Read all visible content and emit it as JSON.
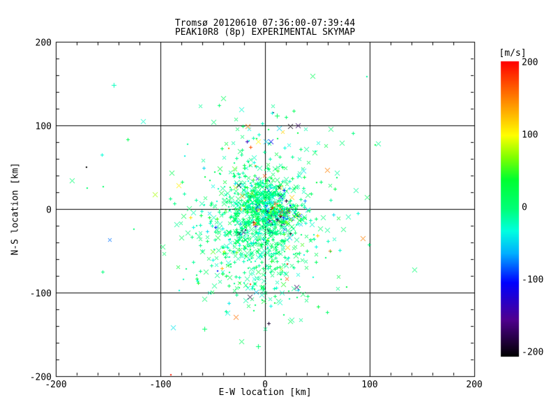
{
  "window": {
    "background": "#FFFFFF",
    "foreground": "#000000"
  },
  "chart_data": {
    "type": "scatter",
    "title": "Tromsø 20120610 07:36:00-07:39:44",
    "subtitle": "PEAK10R8 (8p) EXPERIMENTAL SKYMAP",
    "xlabel": "E-W location [km]",
    "ylabel": "N-S location [km]",
    "xlim": [
      -200,
      200
    ],
    "ylim": [
      -200,
      200
    ],
    "x_ticks": [
      -200,
      -100,
      0,
      100,
      200
    ],
    "y_ticks": [
      200,
      100,
      0,
      -100,
      -200
    ],
    "grid_lines_km": [
      -100,
      0,
      100
    ],
    "minor_tick_interval_km": 20,
    "grid": "on",
    "axis_color": "#000000",
    "background": "#FFFFFF",
    "colorbar": {
      "label": "[m/s]",
      "min": -200,
      "max": 200,
      "ticks": [
        200,
        100,
        0,
        -100,
        -200
      ],
      "position": "right",
      "stops": [
        [
          -200,
          "#000000"
        ],
        [
          -150,
          "#500090"
        ],
        [
          -100,
          "#0000FF"
        ],
        [
          -60,
          "#00B0FF"
        ],
        [
          -30,
          "#00FFE0"
        ],
        [
          0,
          "#00FF78"
        ],
        [
          40,
          "#00FF30"
        ],
        [
          70,
          "#80FF00"
        ],
        [
          100,
          "#FFFF00"
        ],
        [
          150,
          "#FF8000"
        ],
        [
          200,
          "#FF0000"
        ]
      ]
    },
    "marker_types": [
      "x",
      "plus",
      "dot"
    ],
    "marker_weights": [
      0.5,
      0.35,
      0.15
    ],
    "seed": 20120610,
    "clusters": [
      {
        "name": "dense-core",
        "n": 420,
        "cx": -3,
        "cy": 2,
        "sx": 15,
        "sy": 20,
        "v_sigma": 20,
        "wild_frac": 0.13
      },
      {
        "name": "dark-subcore",
        "n": 90,
        "cx": 15,
        "cy": -8,
        "sx": 9,
        "sy": 8,
        "v_sigma": 60,
        "wild_frac": 0.45
      },
      {
        "name": "south-body",
        "n": 620,
        "cx": -8,
        "cy": -28,
        "sx": 27,
        "sy": 40,
        "v_sigma": 18,
        "wild_frac": 0.07
      },
      {
        "name": "halo",
        "n": 160,
        "cx": -5,
        "cy": -5,
        "sx": 52,
        "sy": 62,
        "v_sigma": 22,
        "wild_frac": 0.12
      },
      {
        "name": "north-sparse",
        "n": 35,
        "cx": 0,
        "cy": 75,
        "sx": 40,
        "sy": 28,
        "v_sigma": 25,
        "wild_frac": 0.2
      }
    ],
    "outliers": [
      {
        "x": -185,
        "y": 34,
        "v": 5,
        "m": "x"
      },
      {
        "x": -171,
        "y": 50,
        "v": -200,
        "m": "dot"
      },
      {
        "x": -155,
        "y": 27,
        "v": 10,
        "m": "dot"
      },
      {
        "x": -170,
        "y": 25,
        "v": 8,
        "m": "dot"
      },
      {
        "x": -145,
        "y": 148,
        "v": -20,
        "m": "plus"
      },
      {
        "x": -83,
        "y": 28,
        "v": 105,
        "m": "x"
      },
      {
        "x": -98,
        "y": -45,
        "v": 12,
        "m": "x"
      },
      {
        "x": 45,
        "y": 159,
        "v": 18,
        "m": "x"
      },
      {
        "x": 97,
        "y": 158,
        "v": -12,
        "m": "dot"
      },
      {
        "x": 24,
        "y": 99,
        "v": -195,
        "m": "x"
      },
      {
        "x": 13,
        "y": 97,
        "v": -45,
        "m": "x"
      },
      {
        "x": -17,
        "y": 99,
        "v": 150,
        "m": "x"
      },
      {
        "x": -23,
        "y": 119,
        "v": -25,
        "m": "x"
      },
      {
        "x": 11,
        "y": 112,
        "v": 15,
        "m": "plus"
      },
      {
        "x": -7,
        "y": 81,
        "v": 100,
        "m": "x"
      },
      {
        "x": 5,
        "y": 81,
        "v": -100,
        "m": "x"
      },
      {
        "x": -88,
        "y": -142,
        "v": -40,
        "m": "x"
      },
      {
        "x": -58,
        "y": -143,
        "v": 10,
        "m": "plus"
      },
      {
        "x": -28,
        "y": -129,
        "v": 155,
        "m": "x"
      },
      {
        "x": 24,
        "y": -134,
        "v": 20,
        "m": "x"
      },
      {
        "x": -36,
        "y": -124,
        "v": -30,
        "m": "x"
      },
      {
        "x": -90,
        "y": -198,
        "v": 190,
        "m": "dot"
      },
      {
        "x": -23,
        "y": -158,
        "v": 15,
        "m": "x"
      },
      {
        "x": -7,
        "y": -164,
        "v": 5,
        "m": "plus"
      },
      {
        "x": 93,
        "y": -35,
        "v": 150,
        "m": "x"
      },
      {
        "x": 59,
        "y": 47,
        "v": 150,
        "m": "x"
      }
    ]
  }
}
